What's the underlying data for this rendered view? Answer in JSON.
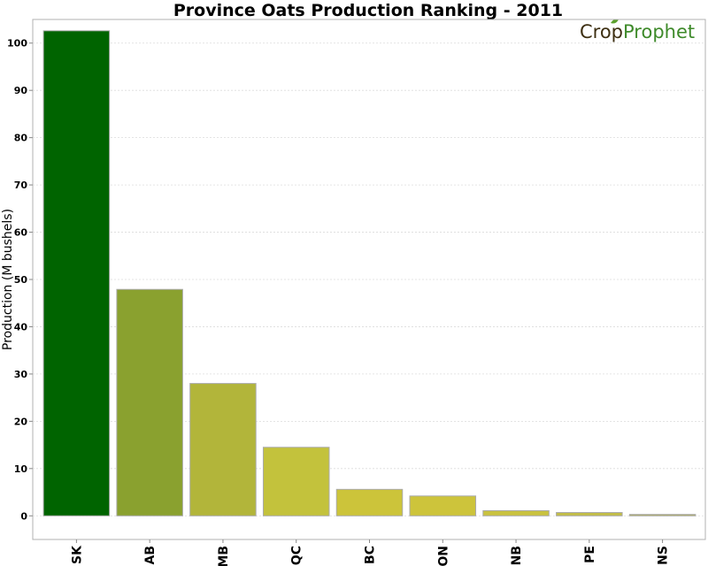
{
  "colors": {
    "axis": "#b0b0b0",
    "logo_crop": "#3d2f12",
    "logo_prophet": "#3e8a2a",
    "logo_leaf": "#5aa02c"
  },
  "logo": {
    "part1": "Crop",
    "part2": "Prophet"
  },
  "chart_data": {
    "type": "bar",
    "title": "Province Oats Production Ranking - 2011",
    "xlabel": "",
    "ylabel": "Production (M bushels)",
    "ylim": [
      -5,
      105
    ],
    "yticks": [
      0,
      10,
      20,
      30,
      40,
      50,
      60,
      70,
      80,
      90,
      100
    ],
    "grid": true,
    "categories": [
      "SK",
      "AB",
      "MB",
      "QC",
      "BC",
      "ON",
      "NB",
      "PE",
      "NS"
    ],
    "values": [
      102.6,
      47.9,
      28.0,
      14.5,
      5.6,
      4.2,
      1.1,
      0.7,
      0.3
    ],
    "colors": [
      "#006400",
      "#8aa12f",
      "#b2b53a",
      "#c3c23c",
      "#ccc43a",
      "#cdc43b",
      "#c9c23f",
      "#c3be46",
      "#b5b35a"
    ]
  }
}
